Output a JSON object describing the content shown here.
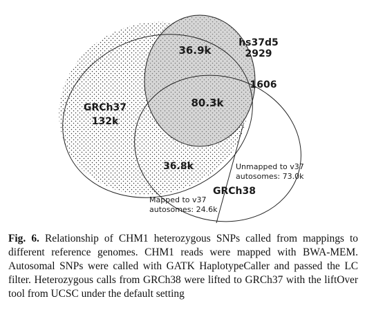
{
  "figure": {
    "sets": {
      "grch37": {
        "name": "GRCh37",
        "count": "132k"
      },
      "hs37d5": {
        "name": "hs37d5",
        "count": "2929"
      },
      "grch38": {
        "name": "GRCh38"
      }
    },
    "regions": {
      "grch37_hs37d5": "36.9k",
      "all_three": "80.3k",
      "grch37_grch38": "36.8k",
      "hs37d5_grch38": "1606"
    },
    "annotations": {
      "unmapped_line1": "Unmapped to v37",
      "unmapped_line2": "autosomes: 73.0k",
      "mapped_line1": "Mapped to v37",
      "mapped_line2": "autosomes: 24.6k"
    }
  },
  "caption": {
    "label": "Fig. 6.",
    "text": "Relationship of CHM1 heterozygous SNPs called from mappings to different reference genomes. CHM1 reads were mapped with BWA-MEM. Autosomal SNPs were called with GATK HaplotypeCaller and passed the LC filter. Heterozygous calls from GRCh38 were lifted to GRCh37 with the liftOver tool from UCSC under the default setting"
  }
}
